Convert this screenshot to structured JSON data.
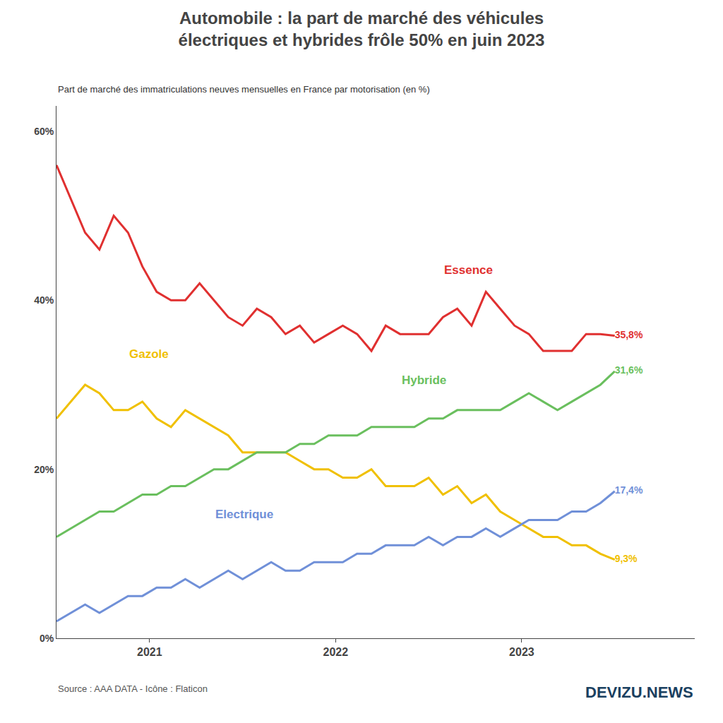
{
  "chart_data": {
    "type": "line",
    "title": "Automobile : la part de marché des véhicules\nélectriques et hybrides frôle 50% en juin 2023",
    "subtitle": "Part de marché des immatriculations neuves mensuelles en France par motorisation (en %)",
    "annotations": [
      {
        "text": "Source : AAA DATA - Icône : Flaticon"
      },
      {
        "text": "DEVIZU.NEWS"
      }
    ],
    "x": [
      2020.5,
      2020.576923,
      2020.653846,
      2020.730769,
      2020.807692,
      2020.884615,
      2020.961538,
      2021.038462,
      2021.115385,
      2021.192308,
      2021.269231,
      2021.346154,
      2021.423077,
      2021.5,
      2021.576923,
      2021.653846,
      2021.730769,
      2021.807692,
      2021.884615,
      2021.961538,
      2022.038462,
      2022.115385,
      2022.192308,
      2022.269231,
      2022.346154,
      2022.423077,
      2022.5,
      2022.576923,
      2022.653846,
      2022.730769,
      2022.807692,
      2022.884615,
      2022.961538,
      2023.038462,
      2023.115385,
      2023.192308,
      2023.269231,
      2023.346154,
      2023.423077,
      2023.5
    ],
    "series": [
      {
        "name": "Essence",
        "color": "#e03030",
        "values": [
          56,
          52,
          48,
          46,
          50,
          48,
          44,
          41,
          40,
          40,
          42,
          40,
          38,
          37,
          39,
          38,
          36,
          37,
          35,
          36,
          37,
          36,
          34,
          37,
          36,
          36,
          36,
          38,
          39,
          37,
          41,
          39,
          37,
          36,
          34,
          34,
          34,
          36,
          36,
          35.8
        ],
        "value_labels": [
          null,
          null,
          null,
          null,
          null,
          null,
          null,
          null,
          null,
          null,
          null,
          null,
          null,
          null,
          null,
          null,
          null,
          null,
          null,
          null,
          null,
          null,
          null,
          null,
          null,
          null,
          null,
          null,
          null,
          null,
          null,
          null,
          null,
          null,
          null,
          null,
          null,
          null,
          null,
          "35,8%"
        ]
      },
      {
        "name": "Gazole",
        "color": "#f0c000",
        "values": [
          26,
          28,
          30,
          29,
          27,
          27,
          28,
          26,
          25,
          27,
          26,
          25,
          24,
          22,
          22,
          22,
          22,
          21,
          20,
          20,
          19,
          19,
          20,
          18,
          18,
          18,
          19,
          17,
          18,
          16,
          17,
          15,
          14,
          13,
          12,
          12,
          11,
          11,
          10,
          9.3
        ],
        "value_labels": [
          null,
          null,
          null,
          null,
          null,
          null,
          null,
          null,
          null,
          null,
          null,
          null,
          null,
          null,
          null,
          null,
          null,
          null,
          null,
          null,
          null,
          null,
          null,
          null,
          null,
          null,
          null,
          null,
          null,
          null,
          null,
          null,
          null,
          null,
          null,
          null,
          null,
          null,
          null,
          "9,3%"
        ]
      },
      {
        "name": "Hybride",
        "color": "#6abf5e",
        "values": [
          12,
          13,
          14,
          15,
          15,
          16,
          17,
          17,
          18,
          18,
          19,
          20,
          20,
          21,
          22,
          22,
          22,
          23,
          23,
          24,
          24,
          24,
          25,
          25,
          25,
          25,
          26,
          26,
          27,
          27,
          27,
          27,
          28,
          29,
          28,
          27,
          28,
          29,
          30,
          31.6
        ],
        "value_labels": [
          null,
          null,
          null,
          null,
          null,
          null,
          null,
          null,
          null,
          null,
          null,
          null,
          null,
          null,
          null,
          null,
          null,
          null,
          null,
          null,
          null,
          null,
          null,
          null,
          null,
          null,
          null,
          null,
          null,
          null,
          null,
          null,
          null,
          null,
          null,
          null,
          null,
          null,
          null,
          "31,6%"
        ]
      },
      {
        "name": "Electrique",
        "color": "#7090d8",
        "values": [
          2,
          3,
          4,
          3,
          4,
          5,
          5,
          6,
          6,
          7,
          6,
          7,
          8,
          7,
          8,
          9,
          8,
          8,
          9,
          9,
          9,
          10,
          10,
          11,
          11,
          11,
          12,
          11,
          12,
          12,
          13,
          12,
          13,
          14,
          14,
          14,
          15,
          15,
          16,
          17.4
        ],
        "value_labels": [
          null,
          null,
          null,
          null,
          null,
          null,
          null,
          null,
          null,
          null,
          null,
          null,
          null,
          null,
          null,
          null,
          null,
          null,
          null,
          null,
          null,
          null,
          null,
          null,
          null,
          null,
          null,
          null,
          null,
          null,
          null,
          null,
          null,
          null,
          null,
          null,
          null,
          null,
          null,
          "17,4%"
        ]
      }
    ],
    "xlim": [
      2020.5,
      2023.93
    ],
    "xticks": [
      2021,
      2022,
      2023
    ],
    "ylim": [
      0,
      63
    ],
    "yticks": [
      {
        "value": 0,
        "label": "0%"
      },
      {
        "value": 20,
        "label": "20%"
      },
      {
        "value": 40,
        "label": "40%"
      },
      {
        "value": 60,
        "label": "60%"
      }
    ],
    "grid": false,
    "data_labels": true
  }
}
